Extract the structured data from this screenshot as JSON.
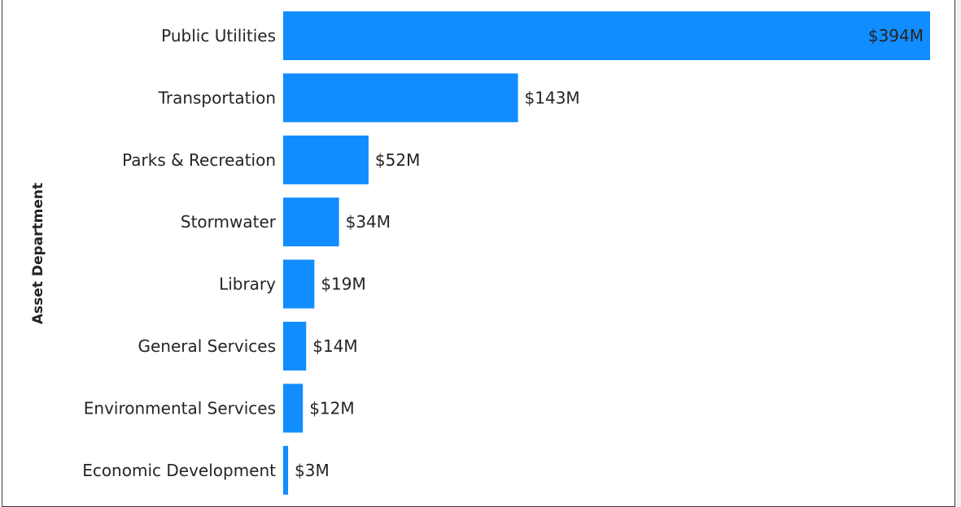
{
  "chart_data": {
    "type": "bar",
    "orientation": "horizontal",
    "ylabel": "Asset Department",
    "xlabel": "",
    "categories": [
      "Public Utilities",
      "Transportation",
      "Parks & Recreation",
      "Stormwater",
      "Library",
      "General Services",
      "Environmental Services",
      "Economic Development"
    ],
    "values": [
      394,
      143,
      52,
      34,
      19,
      14,
      12,
      3
    ],
    "value_labels": [
      "$394M",
      "$143M",
      "$52M",
      "$34M",
      "$19M",
      "$14M",
      "$12M",
      "$3M"
    ],
    "unit": "$M",
    "xlim": [
      0,
      394
    ],
    "grid": false,
    "legend": "none",
    "colors": {
      "bar": "#118DFF",
      "text": "#252423"
    }
  }
}
